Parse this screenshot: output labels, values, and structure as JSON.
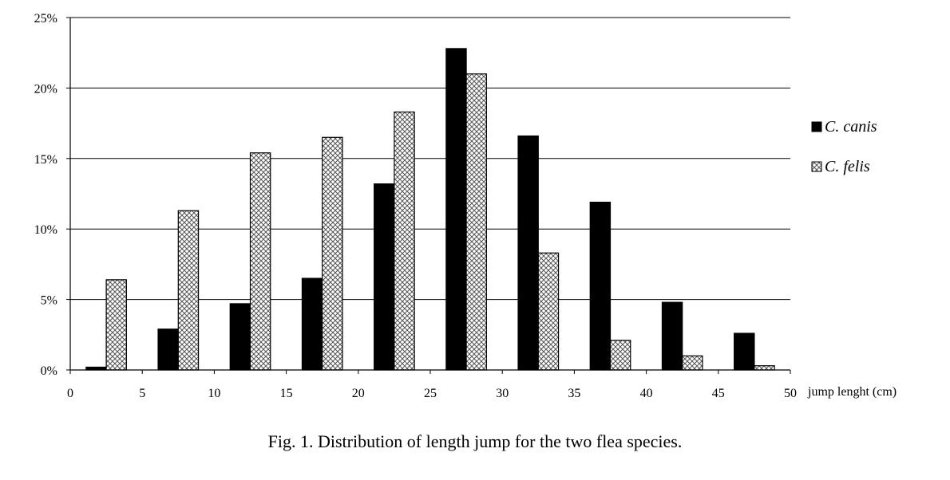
{
  "chart_data": {
    "type": "bar",
    "categories": [
      "0-5",
      "5-10",
      "10-15",
      "15-20",
      "20-25",
      "25-30",
      "30-35",
      "35-40",
      "40-45",
      "45-50"
    ],
    "series": [
      {
        "name": "C. canis",
        "color": "#000000",
        "values": [
          0.2,
          2.9,
          4.7,
          6.5,
          13.2,
          22.8,
          16.6,
          11.9,
          4.8,
          2.6
        ]
      },
      {
        "name": "C. felis",
        "color": "crosshatch",
        "values": [
          6.4,
          11.3,
          15.4,
          16.5,
          18.3,
          21.0,
          8.3,
          2.1,
          1.0,
          0.3
        ]
      }
    ],
    "x_ticks": [
      "0",
      "5",
      "10",
      "15",
      "20",
      "25",
      "30",
      "35",
      "40",
      "45",
      "50"
    ],
    "y_ticks": [
      "0%",
      "5%",
      "10%",
      "15%",
      "20%",
      "25%"
    ],
    "xlabel": "jump lenght (cm)",
    "ylabel": "",
    "ylim": [
      0,
      25
    ],
    "xlim": [
      0,
      50
    ],
    "grid": "horizontal",
    "legend_position": "right",
    "caption": "Fig. 1. Distribution of length jump for the two flea species."
  }
}
